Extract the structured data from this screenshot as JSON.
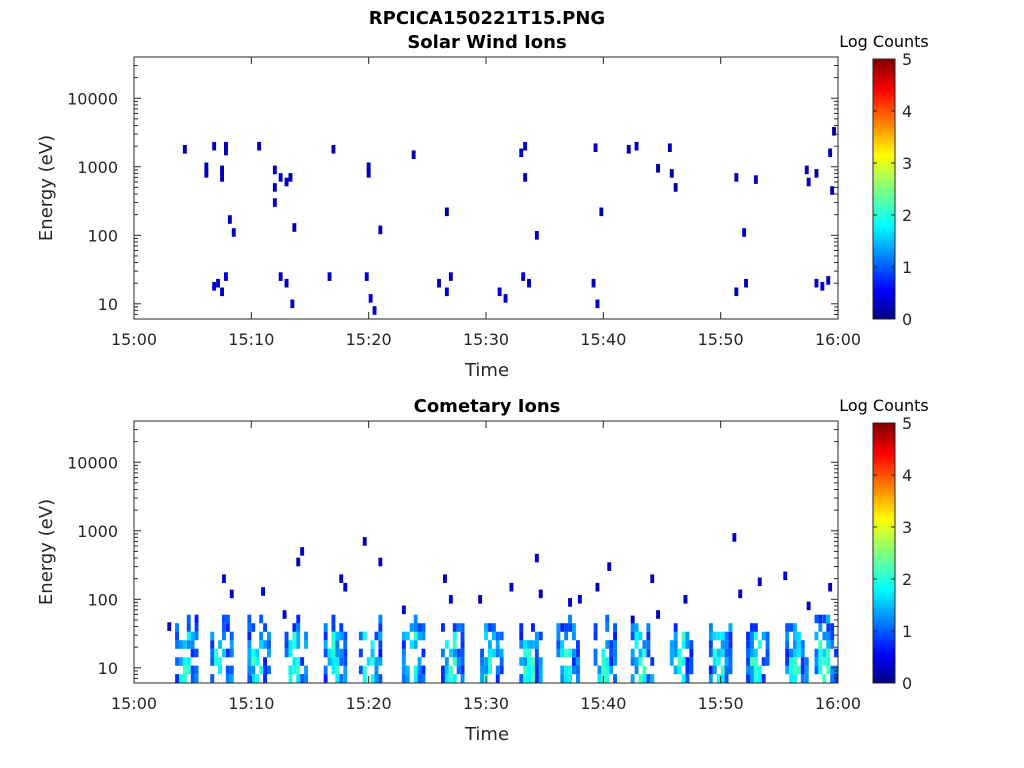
{
  "figure_title": "RPCICA150221T15.PNG",
  "colorbar_label": "Log Counts",
  "colorbar_ticks": [
    "0",
    "1",
    "2",
    "3",
    "4",
    "5"
  ],
  "colormap": "jet",
  "chart_data": [
    {
      "type": "heatmap",
      "title": "Solar Wind Ions",
      "xlabel": "Time",
      "ylabel": "Energy (eV)",
      "xticks": [
        "15:00",
        "15:10",
        "15:20",
        "15:30",
        "15:40",
        "15:50",
        "16:00"
      ],
      "yticks": [
        "10",
        "100",
        "1000",
        "10000"
      ],
      "xlim": [
        "15:00",
        "16:00"
      ],
      "ylim": [
        6,
        40000
      ],
      "yscale": "log",
      "zlim": [
        0,
        5
      ],
      "zlabel": "Log Counts",
      "cells": [
        [
          "15:04:20",
          1800,
          0.2
        ],
        [
          "15:06:10",
          1000,
          0.3
        ],
        [
          "15:06:10",
          800,
          0.3
        ],
        [
          "15:06:50",
          2000,
          0.3
        ],
        [
          "15:07:30",
          900,
          0.3
        ],
        [
          "15:07:30",
          700,
          0.3
        ],
        [
          "15:07:50",
          2000,
          0.3
        ],
        [
          "15:07:50",
          1700,
          0.3
        ],
        [
          "15:08:10",
          170,
          0.3
        ],
        [
          "15:08:30",
          110,
          0.3
        ],
        [
          "15:10:40",
          2000,
          0.2
        ],
        [
          "15:12:00",
          900,
          0.3
        ],
        [
          "15:12:00",
          500,
          0.3
        ],
        [
          "15:12:00",
          300,
          0.3
        ],
        [
          "15:12:30",
          700,
          0.3
        ],
        [
          "15:13:00",
          600,
          0.3
        ],
        [
          "15:13:20",
          700,
          0.3
        ],
        [
          "15:13:40",
          130,
          0.2
        ],
        [
          "15:17:00",
          1800,
          0.2
        ],
        [
          "15:20:00",
          1000,
          0.3
        ],
        [
          "15:20:00",
          800,
          0.3
        ],
        [
          "15:21:00",
          120,
          0.3
        ],
        [
          "15:23:50",
          1500,
          0.2
        ],
        [
          "15:26:40",
          220,
          0.2
        ],
        [
          "15:33:00",
          1600,
          0.3
        ],
        [
          "15:33:20",
          2000,
          0.3
        ],
        [
          "15:33:20",
          700,
          0.3
        ],
        [
          "15:34:20",
          100,
          0.3
        ],
        [
          "15:39:20",
          1900,
          0.3
        ],
        [
          "15:39:50",
          220,
          0.2
        ],
        [
          "15:42:10",
          1800,
          0.2
        ],
        [
          "15:42:50",
          2000,
          0.3
        ],
        [
          "15:44:40",
          950,
          0.2
        ],
        [
          "15:45:40",
          1900,
          0.3
        ],
        [
          "15:45:50",
          800,
          0.2
        ],
        [
          "15:46:10",
          500,
          0.2
        ],
        [
          "15:51:20",
          700,
          0.3
        ],
        [
          "15:52:00",
          110,
          0.3
        ],
        [
          "15:53:00",
          650,
          0.3
        ],
        [
          "15:57:20",
          900,
          0.3
        ],
        [
          "15:57:30",
          600,
          0.3
        ],
        [
          "15:58:10",
          800,
          0.2
        ],
        [
          "15:59:20",
          1600,
          0.3
        ],
        [
          "15:59:30",
          450,
          0.3
        ],
        [
          "15:59:40",
          3300,
          0.2
        ],
        [
          "15:06:50",
          18,
          0.4
        ],
        [
          "15:07:10",
          20,
          0.4
        ],
        [
          "15:07:30",
          15,
          0.4
        ],
        [
          "15:07:50",
          25,
          0.5
        ],
        [
          "15:12:30",
          25,
          0.3
        ],
        [
          "15:13:00",
          20,
          0.3
        ],
        [
          "15:13:30",
          10,
          0.3
        ],
        [
          "15:16:40",
          25,
          0.3
        ],
        [
          "15:19:50",
          25,
          0.4
        ],
        [
          "15:20:10",
          12,
          0.5
        ],
        [
          "15:20:30",
          8,
          0.4
        ],
        [
          "15:26:00",
          20,
          0.3
        ],
        [
          "15:26:40",
          15,
          0.4
        ],
        [
          "15:27:00",
          25,
          0.3
        ],
        [
          "15:31:10",
          15,
          0.4
        ],
        [
          "15:31:40",
          12,
          0.4
        ],
        [
          "15:33:10",
          25,
          0.4
        ],
        [
          "15:33:40",
          20,
          0.3
        ],
        [
          "15:39:10",
          20,
          0.3
        ],
        [
          "15:39:30",
          10,
          0.3
        ],
        [
          "15:51:20",
          15,
          0.3
        ],
        [
          "15:52:10",
          20,
          0.3
        ],
        [
          "15:58:10",
          20,
          0.4
        ],
        [
          "15:58:40",
          18,
          0.4
        ],
        [
          "15:59:10",
          22,
          0.3
        ]
      ]
    },
    {
      "type": "heatmap",
      "title": "Cometary Ions",
      "xlabel": "Time",
      "ylabel": "Energy (eV)",
      "xticks": [
        "15:00",
        "15:10",
        "15:20",
        "15:30",
        "15:40",
        "15:50",
        "16:00"
      ],
      "yticks": [
        "10",
        "100",
        "1000",
        "10000"
      ],
      "xlim": [
        "15:00",
        "16:00"
      ],
      "ylim": [
        6,
        40000
      ],
      "yscale": "log",
      "zlim": [
        0,
        5
      ],
      "zlabel": "Log Counts",
      "burst_times": [
        "15:04:20",
        "15:07:20",
        "15:10:30",
        "15:13:40",
        "15:17:00",
        "15:20:00",
        "15:23:40",
        "15:27:00",
        "15:30:20",
        "15:33:40",
        "15:36:50",
        "15:40:00",
        "15:43:10",
        "15:46:30",
        "15:49:50",
        "15:53:00",
        "15:56:20",
        "15:58:50"
      ],
      "cells": [
        [
          "15:03:00",
          40,
          0.3
        ],
        [
          "15:07:40",
          200,
          0.4
        ],
        [
          "15:08:20",
          120,
          0.3
        ],
        [
          "15:11:00",
          130,
          0.4
        ],
        [
          "15:12:50",
          60,
          0.4
        ],
        [
          "15:14:20",
          500,
          0.4
        ],
        [
          "15:14:00",
          350,
          0.3
        ],
        [
          "15:18:00",
          150,
          0.4
        ],
        [
          "15:17:40",
          200,
          0.3
        ],
        [
          "15:19:40",
          700,
          0.3
        ],
        [
          "15:21:00",
          350,
          0.4
        ],
        [
          "15:23:00",
          70,
          0.4
        ],
        [
          "15:26:30",
          200,
          0.3
        ],
        [
          "15:27:00",
          100,
          0.4
        ],
        [
          "15:29:30",
          100,
          0.3
        ],
        [
          "15:32:10",
          150,
          0.3
        ],
        [
          "15:34:20",
          400,
          0.4
        ],
        [
          "15:34:40",
          120,
          0.3
        ],
        [
          "15:37:10",
          90,
          0.3
        ],
        [
          "15:38:00",
          100,
          0.4
        ],
        [
          "15:39:30",
          150,
          0.3
        ],
        [
          "15:40:30",
          300,
          0.3
        ],
        [
          "15:42:30",
          50,
          0.3
        ],
        [
          "15:44:10",
          200,
          0.3
        ],
        [
          "15:44:40",
          60,
          0.3
        ],
        [
          "15:47:00",
          100,
          0.3
        ],
        [
          "15:51:10",
          800,
          0.3
        ],
        [
          "15:51:40",
          120,
          0.3
        ],
        [
          "15:53:20",
          180,
          0.3
        ],
        [
          "15:55:30",
          220,
          0.4
        ],
        [
          "15:57:30",
          80,
          0.3
        ],
        [
          "15:59:20",
          150,
          0.3
        ]
      ]
    }
  ]
}
